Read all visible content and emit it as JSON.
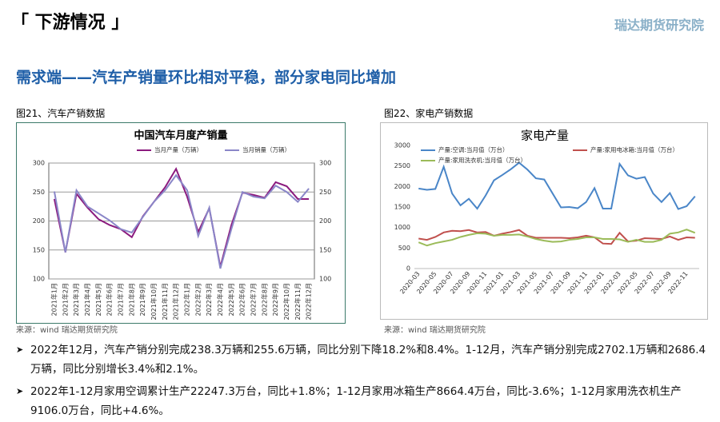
{
  "header": {
    "section": "「 下游情况 」",
    "logo": "瑞达期货研究院"
  },
  "heading": "需求端——汽车产销量环比相对平稳，部分家电同比增加",
  "captions": [
    "图21、汽车产销数据",
    "图22、家电产销数据"
  ],
  "sources": [
    "来源：wind   瑞达期货研究院",
    "来源：wind   瑞达期货研究院"
  ],
  "bullets": [
    "2022年12月，汽车产销分别完成238.3万辆和255.6万辆，同比分别下降18.2%和8.4%。1-12月，汽车产销分别完成2702.1万辆和2686.4万辆，同比分别增长3.4%和2.1%。",
    "2022年1-12月家用空调累计生产22247.3万台，同比+1.8%；1-12月家用冰箱生产8664.4万台，同比-3.6%；1-12月家用洗衣机生产9106.0万台，同比+4.6%。"
  ],
  "chart_data": [
    {
      "type": "line",
      "title": "中国汽车月度产销量",
      "categories": [
        "2021年1月",
        "2021年2月",
        "2021年3月",
        "2021年4月",
        "2021年5月",
        "2021年6月",
        "2021年7月",
        "2021年8月",
        "2021年9月",
        "2021年10月",
        "2021年11月",
        "2021年12月",
        "2022年1月",
        "2022年2月",
        "2022年3月",
        "2022年4月",
        "2022年5月",
        "2022年6月",
        "2022年7月",
        "2022年8月",
        "2022年9月",
        "2022年10月",
        "2022年11月",
        "2022年12月"
      ],
      "series": [
        {
          "name": "当月产量（万辆）",
          "color": "#8b1a7e",
          "values": [
            238,
            146,
            247,
            223,
            203,
            193,
            186,
            172,
            208,
            233,
            258,
            290,
            242,
            181,
            222,
            121,
            193,
            249,
            245,
            240,
            267,
            260,
            238,
            238
          ]
        },
        {
          "name": "当月销量（万辆）",
          "color": "#8a86c8",
          "values": [
            251,
            146,
            253,
            225,
            213,
            201,
            186,
            180,
            207,
            233,
            253,
            279,
            253,
            174,
            223,
            118,
            186,
            250,
            242,
            239,
            261,
            250,
            233,
            256
          ]
        }
      ],
      "ylim": [
        100,
        300
      ],
      "yticks": [
        100,
        150,
        200,
        250,
        300
      ],
      "y2lim": [
        100,
        300
      ],
      "y2ticks": [
        100,
        150,
        200,
        250,
        300
      ],
      "grid": true
    },
    {
      "type": "line",
      "title": "家电产量",
      "categories": [
        "2020-03",
        null,
        "2020-05",
        null,
        "2020-07",
        null,
        "2020-09",
        null,
        "2020-11",
        null,
        "2021-01",
        null,
        "2021-03",
        null,
        "2021-05",
        null,
        "2021-07",
        null,
        "2021-09",
        null,
        "2021-11",
        null,
        "2022-01",
        null,
        "2022-03",
        null,
        "2022-05",
        null,
        "2022-07",
        null,
        "2022-09",
        null,
        "2022-11",
        null
      ],
      "series": [
        {
          "name": "产量:空调:当月值（万台）",
          "color": "#4a86c8",
          "values": [
            1950,
            1920,
            1940,
            2480,
            1830,
            1540,
            1700,
            1460,
            1780,
            2150,
            2280,
            2420,
            2580,
            2410,
            2200,
            2170,
            1830,
            1490,
            1500,
            1470,
            1620,
            1960,
            1460,
            1460,
            2550,
            2270,
            2190,
            2230,
            1830,
            1620,
            1840,
            1450,
            1520,
            1760
          ]
        },
        {
          "name": "产量:家用电冰箱:当月值（万台）",
          "color": "#c0504d",
          "values": [
            730,
            700,
            770,
            880,
            920,
            910,
            940,
            880,
            890,
            800,
            850,
            890,
            940,
            800,
            750,
            750,
            750,
            750,
            740,
            760,
            800,
            760,
            610,
            600,
            870,
            660,
            680,
            740,
            730,
            720,
            780,
            700,
            760,
            750
          ]
        },
        {
          "name": "产量:家用洗衣机:当月值（万台）",
          "color": "#9bbb59",
          "values": [
            640,
            560,
            620,
            660,
            700,
            770,
            820,
            860,
            850,
            800,
            820,
            820,
            830,
            780,
            720,
            680,
            650,
            660,
            700,
            720,
            760,
            760,
            720,
            720,
            710,
            650,
            700,
            650,
            650,
            700,
            850,
            880,
            950,
            870
          ]
        }
      ],
      "ylim": [
        0,
        3000
      ],
      "yticks": [
        0,
        500,
        1000,
        1500,
        2000,
        2500,
        3000
      ],
      "grid": false
    }
  ]
}
